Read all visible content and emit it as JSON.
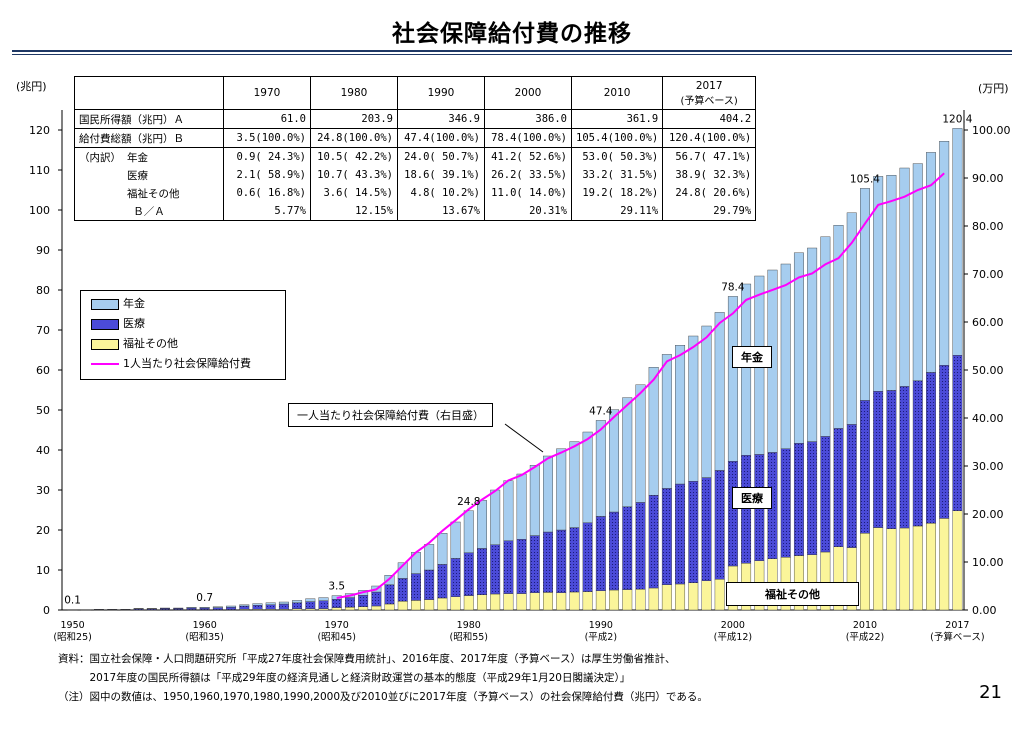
{
  "title": "社会保障給付費の推移",
  "page_number": "21",
  "colors": {
    "pension": "#a6cdef",
    "medical": "#4b4bd8",
    "welfare": "#fbf59a",
    "per_capita": "#ff00ff",
    "rule": "#1f3864"
  },
  "chart_data": {
    "type": "bar",
    "stacked": true,
    "left_axis": {
      "unit": "(兆円)",
      "min": 0,
      "max": 125,
      "ticks": [
        "0",
        "10",
        "20",
        "30",
        "40",
        "50",
        "60",
        "70",
        "80",
        "90",
        "100",
        "110",
        "120"
      ]
    },
    "right_axis": {
      "unit": "(万円)",
      "min": 0,
      "max": 104.17,
      "ticks": [
        "0.00",
        "10.00",
        "20.00",
        "30.00",
        "40.00",
        "50.00",
        "60.00",
        "70.00",
        "80.00",
        "90.00",
        "100.00"
      ]
    },
    "x_labels": [
      {
        "year": "1950",
        "era": "(昭和25)"
      },
      {
        "year": "1960",
        "era": "(昭和35)"
      },
      {
        "year": "1970",
        "era": "(昭和45)"
      },
      {
        "year": "1980",
        "era": "(昭和55)"
      },
      {
        "year": "1990",
        "era": "(平成2)"
      },
      {
        "year": "2000",
        "era": "(平成12)"
      },
      {
        "year": "2010",
        "era": "(平成22)"
      },
      {
        "year": "2017",
        "era": "(予算ベース)"
      }
    ],
    "years": [
      1950,
      1951,
      1952,
      1953,
      1954,
      1955,
      1956,
      1957,
      1958,
      1959,
      1960,
      1961,
      1962,
      1963,
      1964,
      1965,
      1966,
      1967,
      1968,
      1969,
      1970,
      1971,
      1972,
      1973,
      1974,
      1975,
      1976,
      1977,
      1978,
      1979,
      1980,
      1981,
      1982,
      1983,
      1984,
      1985,
      1986,
      1987,
      1988,
      1989,
      1990,
      1991,
      1992,
      1993,
      1994,
      1995,
      1996,
      1997,
      1998,
      1999,
      2000,
      2001,
      2002,
      2003,
      2004,
      2005,
      2006,
      2007,
      2008,
      2009,
      2010,
      2011,
      2012,
      2013,
      2014,
      2015,
      2016,
      2017
    ],
    "series": [
      {
        "name": "年金",
        "values": [
          0.0,
          0.0,
          0.0,
          0.0,
          0.0,
          0.1,
          0.1,
          0.1,
          0.1,
          0.2,
          0.2,
          0.2,
          0.3,
          0.3,
          0.4,
          0.5,
          0.5,
          0.6,
          0.7,
          0.8,
          0.9,
          1.0,
          1.2,
          1.5,
          2.4,
          3.9,
          5.3,
          6.4,
          7.8,
          9.1,
          10.5,
          12.0,
          13.7,
          15.0,
          16.3,
          17.6,
          19.0,
          20.3,
          21.5,
          22.7,
          24.0,
          25.6,
          27.3,
          29.4,
          32.0,
          33.5,
          34.7,
          36.3,
          37.9,
          39.5,
          41.2,
          42.8,
          44.6,
          45.6,
          46.2,
          47.6,
          48.4,
          49.9,
          50.8,
          52.9,
          53.0,
          53.7,
          53.8,
          54.6,
          54.3,
          55.0,
          56.0,
          56.7
        ]
      },
      {
        "name": "医療",
        "values": [
          0.0,
          0.0,
          0.1,
          0.1,
          0.1,
          0.2,
          0.2,
          0.3,
          0.3,
          0.4,
          0.4,
          0.5,
          0.6,
          0.8,
          1.0,
          1.1,
          1.3,
          1.5,
          1.8,
          2.0,
          2.1,
          2.4,
          2.9,
          3.5,
          4.8,
          5.7,
          6.7,
          7.4,
          8.4,
          9.6,
          10.7,
          11.6,
          12.3,
          13.2,
          13.6,
          14.3,
          15.1,
          15.7,
          16.1,
          17.2,
          18.6,
          19.5,
          20.7,
          21.7,
          23.2,
          24.1,
          25.0,
          25.4,
          25.8,
          27.2,
          26.2,
          27.0,
          26.6,
          26.6,
          27.1,
          28.1,
          28.3,
          28.9,
          29.6,
          30.8,
          33.2,
          34.1,
          34.6,
          35.4,
          36.3,
          37.7,
          38.3,
          38.9
        ]
      },
      {
        "name": "福祉その他",
        "values": [
          0.1,
          0.1,
          0.1,
          0.1,
          0.1,
          0.1,
          0.1,
          0.1,
          0.1,
          0.1,
          0.1,
          0.1,
          0.1,
          0.2,
          0.2,
          0.2,
          0.2,
          0.3,
          0.3,
          0.3,
          0.6,
          0.7,
          0.8,
          1.0,
          1.5,
          2.2,
          2.4,
          2.6,
          3.0,
          3.3,
          3.6,
          3.8,
          4.0,
          4.1,
          4.1,
          4.3,
          4.4,
          4.3,
          4.5,
          4.6,
          4.8,
          5.0,
          5.1,
          5.2,
          5.5,
          6.3,
          6.5,
          6.8,
          7.3,
          7.7,
          11.0,
          11.7,
          12.3,
          12.8,
          13.2,
          13.6,
          13.8,
          14.5,
          15.8,
          15.6,
          19.2,
          20.6,
          20.3,
          20.5,
          21.0,
          21.7,
          22.9,
          24.8
        ]
      },
      {
        "name": "1人当たり社会保障給付費",
        "axis": "right",
        "values": [
          null,
          null,
          null,
          null,
          null,
          null,
          null,
          null,
          null,
          null,
          null,
          null,
          null,
          null,
          null,
          null,
          null,
          null,
          null,
          null,
          2.5,
          3.0,
          3.7,
          4.3,
          6.5,
          9.3,
          12.0,
          14.0,
          16.5,
          18.7,
          21.0,
          23.0,
          24.8,
          27.0,
          28.1,
          29.8,
          31.6,
          32.8,
          34.1,
          35.6,
          37.6,
          40.2,
          42.7,
          45.2,
          48.0,
          51.8,
          53.1,
          54.8,
          56.8,
          59.8,
          61.8,
          64.6,
          65.7,
          66.7,
          67.7,
          69.3,
          70.1,
          72.0,
          73.3,
          76.5,
          80.5,
          84.4,
          85.2,
          86.1,
          87.5,
          88.5,
          91.0,
          null
        ]
      }
    ],
    "annotations": [
      {
        "year": 1950,
        "text": "0.1"
      },
      {
        "year": 1960,
        "text": "0.7"
      },
      {
        "year": 1970,
        "text": "3.5"
      },
      {
        "year": 1980,
        "text": "24.8"
      },
      {
        "year": 1990,
        "text": "47.4"
      },
      {
        "year": 2000,
        "text": "78.4"
      },
      {
        "year": 2010,
        "text": "105.4"
      },
      {
        "year": 2017,
        "text": "120.4"
      }
    ]
  },
  "summary_table": {
    "headers": [
      "1970",
      "1980",
      "1990",
      "2000",
      "2010",
      "2017"
    ],
    "header_2017_sub": "(予算ベース)",
    "rows": [
      {
        "label": "国民所得額（兆円）Ａ",
        "values": [
          "61.0",
          "203.9",
          "346.9",
          "386.0",
          "361.9",
          "404.2"
        ]
      },
      {
        "label": "給付費総額（兆円）Ｂ",
        "values": [
          "3.5(100.0%)",
          "24.8(100.0%)",
          "47.4(100.0%)",
          "78.4(100.0%)",
          "105.4(100.0%)",
          "120.4(100.0%)"
        ]
      },
      {
        "label": "年金",
        "prefix": "（内訳）",
        "values": [
          "0.9( 24.3%)",
          "10.5( 42.2%)",
          "24.0( 50.7%)",
          "41.2( 52.6%)",
          "53.0( 50.3%)",
          "56.7( 47.1%)"
        ]
      },
      {
        "label": "医療",
        "values": [
          "2.1( 58.9%)",
          "10.7( 43.3%)",
          "18.6( 39.1%)",
          "26.2( 33.5%)",
          "33.2( 31.5%)",
          "38.9( 32.3%)"
        ]
      },
      {
        "label": "福祉その他",
        "values": [
          "0.6( 16.8%)",
          "3.6( 14.5%)",
          "4.8( 10.2%)",
          "11.0( 14.0%)",
          "19.2( 18.2%)",
          "24.8( 20.6%)"
        ]
      },
      {
        "label": "Ｂ／Ａ",
        "values": [
          "5.77%",
          "12.15%",
          "13.67%",
          "20.31%",
          "29.11%",
          "29.79%"
        ]
      }
    ]
  },
  "legend": {
    "pension": "年金",
    "medical": "医療",
    "welfare": "福祉その他",
    "per_capita": "1人当たり社会保障給付費"
  },
  "callout": "一人当たり社会保障給付費（右目盛）",
  "segment_labels": {
    "pension": "年金",
    "medical": "医療",
    "welfare": "福祉その他"
  },
  "notes": [
    "資料：国立社会保障・人口問題研究所「平成27年度社会保障費用統計」、2016年度、2017年度（予算ベース）は厚生労働省推計、",
    "　　　2017年度の国民所得額は「平成29年度の経済見通しと経済財政運営の基本的態度（平成29年1月20日閣議決定）」",
    "（注）図中の数値は、1950,1960,1970,1980,1990,2000及び2010並びに2017年度（予算ベース）の社会保障給付費（兆円）である。"
  ]
}
